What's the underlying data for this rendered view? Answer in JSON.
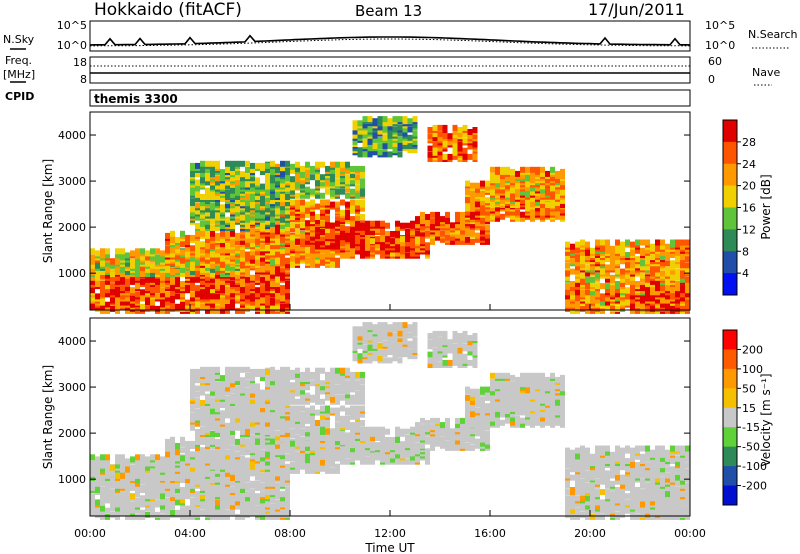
{
  "header": {
    "station": "Hokkaido (fitACF)",
    "beam": "Beam 13",
    "date": "17/Jun/2011"
  },
  "top_panels": {
    "nsky_label": "N.Sky",
    "nsearch_label": "N.Search",
    "noise_ticks": [
      "10^5",
      "10^0"
    ],
    "freq_label": "Freq.",
    "freq_unit": "[MHz]",
    "freq_ticks": [
      "18",
      "8"
    ],
    "nave_label": "Nave",
    "nave_ticks": [
      "60",
      "0"
    ],
    "cpid_label": "CPID",
    "cpid_value": "themis 3300"
  },
  "colors": {
    "power_scale": [
      "#0010f0",
      "#1f4fa8",
      "#2e8b57",
      "#5fc43a",
      "#f0d000",
      "#ff9900",
      "#ff5500",
      "#e00000"
    ],
    "velocity_scale": [
      "#ff0000",
      "#ff5a00",
      "#ff9900",
      "#f5c000",
      "#c8c8c8",
      "#5fd23a",
      "#2e8b57",
      "#1f4fa8",
      "#0010d0"
    ]
  },
  "chart_data": [
    {
      "type": "heatmap",
      "panel": "power",
      "ylabel": "Slant Range [km]",
      "yticks": [
        1000,
        2000,
        3000,
        4000
      ],
      "ylim": [
        200,
        4500
      ],
      "xlim": [
        "00:00",
        "24:00"
      ],
      "colorbar": {
        "label": "Power [dB]",
        "ticks": [
          "4",
          "8",
          "12",
          "16",
          "20",
          "24",
          "28"
        ],
        "range": [
          0,
          32
        ]
      }
    },
    {
      "type": "heatmap",
      "panel": "velocity",
      "xlabel": "Time UT",
      "xticks": [
        "00:00",
        "04:00",
        "08:00",
        "12:00",
        "16:00",
        "20:00",
        "00:00"
      ],
      "ylabel": "Slant Range [km]",
      "yticks": [
        1000,
        2000,
        3000,
        4000
      ],
      "ylim": [
        200,
        4500
      ],
      "colorbar": {
        "label": "Velocity [m s⁻¹]",
        "ticks": [
          "200",
          "100",
          "50",
          "15",
          "-15",
          "-50",
          "-100",
          "-200"
        ],
        "range": [
          -250,
          250
        ]
      }
    }
  ]
}
